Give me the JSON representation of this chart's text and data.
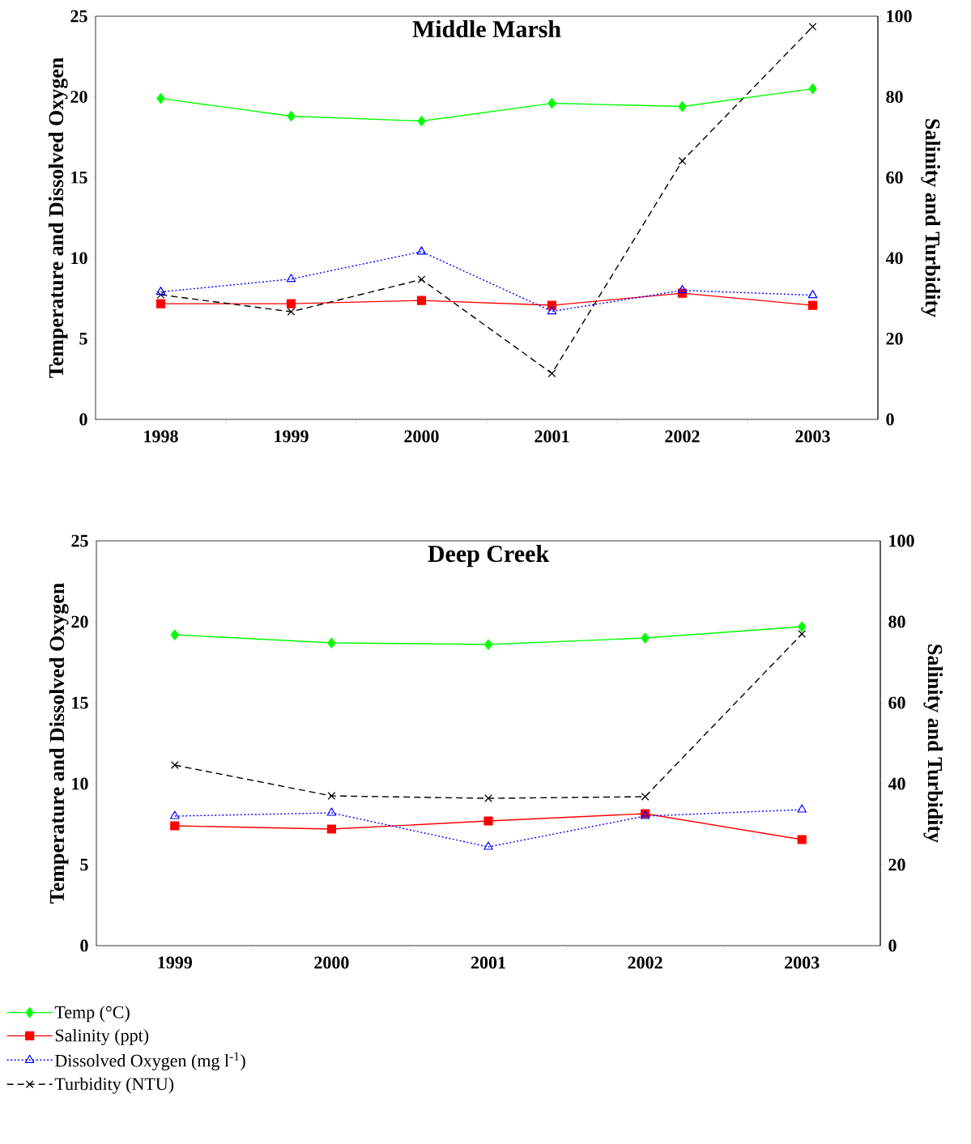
{
  "chart_data": [
    {
      "type": "line",
      "title": "Middle Marsh",
      "ylabel": "Temperature and Dissolved Oxygen",
      "y2label": "Salinity and Turbidity",
      "categories": [
        "1998",
        "1999",
        "2000",
        "2001",
        "2002",
        "2003"
      ],
      "ylim": [
        0,
        25
      ],
      "yticks": [
        0,
        5,
        10,
        15,
        20,
        25
      ],
      "y2lim": [
        0,
        100
      ],
      "y2ticks": [
        0,
        20,
        40,
        60,
        80,
        100
      ],
      "series": [
        {
          "color": "#00ff00",
          "marker": "diamond",
          "line_style": "solid",
          "values": [
            19.9,
            18.8,
            18.5,
            19.6,
            19.4,
            20.5
          ]
        },
        {
          "color": "#ff0000",
          "marker": "square",
          "line_style": "solid",
          "axis": "y2",
          "values": [
            28.7,
            28.7,
            29.5,
            28.3,
            31.3,
            28.3
          ]
        },
        {
          "color": "#0000ff",
          "marker": "triangle",
          "line_style": "dotted",
          "values": [
            7.9,
            8.7,
            10.4,
            6.7,
            8.0,
            7.7
          ]
        },
        {
          "color": "#000000",
          "marker": "cross",
          "line_style": "dashed",
          "axis": "y2",
          "values": [
            30.9,
            26.7,
            34.7,
            11.4,
            64.1,
            97.4
          ]
        }
      ]
    },
    {
      "type": "line",
      "title": "Deep Creek",
      "ylabel": "Temperature and Dissolved Oxygen",
      "y2label": "Salinity and Turbidity",
      "categories": [
        "1999",
        "2000",
        "2001",
        "2002",
        "2003"
      ],
      "ylim": [
        0,
        25
      ],
      "yticks": [
        0,
        5,
        10,
        15,
        20,
        25
      ],
      "y2lim": [
        0,
        100
      ],
      "y2ticks": [
        0,
        20,
        40,
        60,
        80,
        100
      ],
      "legend": "bottom left",
      "series": [
        {
          "name": "Temp (°C)",
          "color": "#00ff00",
          "marker": "diamond",
          "line_style": "solid",
          "values": [
            19.2,
            18.7,
            18.6,
            19.0,
            19.7
          ]
        },
        {
          "name": "Salinity (ppt)",
          "color": "#ff0000",
          "marker": "square",
          "line_style": "solid",
          "axis": "y2",
          "values": [
            29.6,
            28.8,
            30.8,
            32.6,
            26.2
          ]
        },
        {
          "name": "Dissolved Oxygen (mg l$^{-1}$)",
          "color": "#0000ff",
          "marker": "triangle",
          "line_style": "dotted",
          "values": [
            8.0,
            8.2,
            6.1,
            8.0,
            8.4
          ]
        },
        {
          "name": "Turbidity (NTU)",
          "color": "#000000",
          "marker": "cross",
          "line_style": "dashed",
          "axis": "y2",
          "values": [
            44.6,
            37.0,
            36.4,
            36.8,
            77.0
          ]
        }
      ]
    }
  ]
}
